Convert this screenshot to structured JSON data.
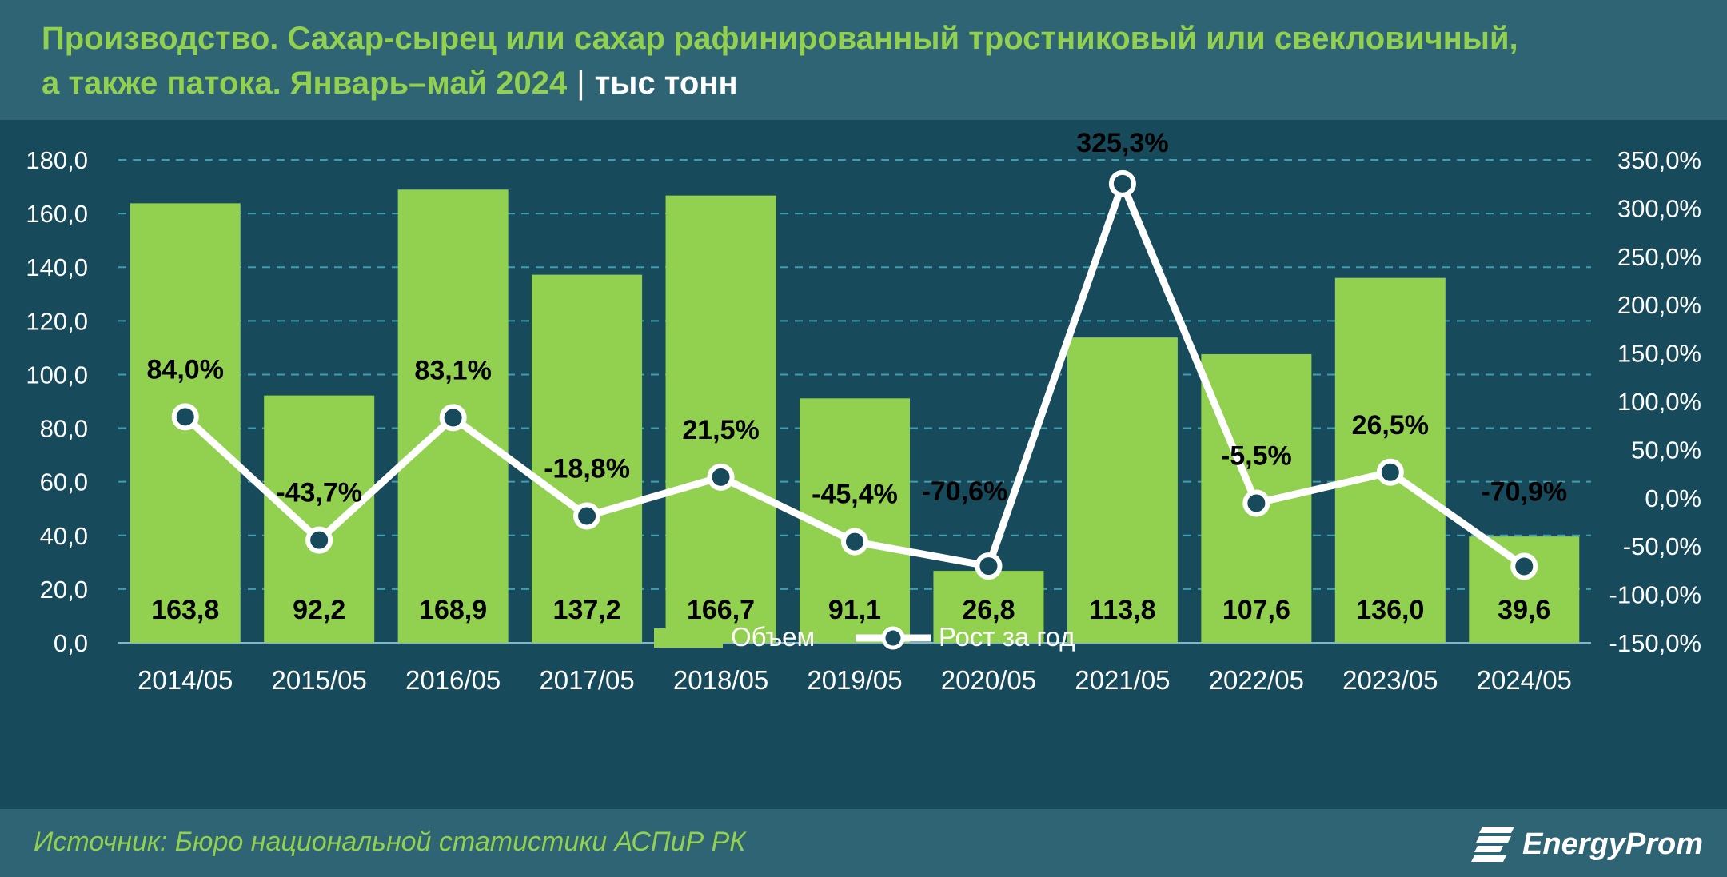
{
  "header": {
    "title_line1": "Производство. Сахар-сырец или сахар рафинированный тростниковый или свекловичный,",
    "title_line2": "а также патока. Январь–май 2024",
    "separator": "|",
    "unit": "тыс тонн"
  },
  "footer": {
    "source": "Источник: Бюро национальной статистики АСПиР РК",
    "logo_text": "EnergyProm"
  },
  "colors": {
    "bar": "#92d050",
    "line": "#ffffff",
    "gridline": "#3f9fb2",
    "text": "#ffffff",
    "label": "#000000",
    "background": "#174b5c",
    "header": "#2e6473"
  },
  "chart_data": {
    "type": "bar",
    "categories": [
      "2014/05",
      "2015/05",
      "2016/05",
      "2017/05",
      "2018/05",
      "2019/05",
      "2020/05",
      "2021/05",
      "2022/05",
      "2023/05",
      "2024/05"
    ],
    "series": [
      {
        "name": "Объем",
        "type": "bar",
        "axis": "left",
        "values": [
          163.8,
          92.2,
          168.9,
          137.2,
          166.7,
          91.1,
          26.8,
          113.8,
          107.6,
          136.0,
          39.6
        ],
        "labels": [
          "163,8",
          "92,2",
          "168,9",
          "137,2",
          "166,7",
          "91,1",
          "26,8",
          "113,8",
          "107,6",
          "136,0",
          "39,6"
        ]
      },
      {
        "name": "Рост за год",
        "type": "line",
        "axis": "right",
        "values": [
          84.0,
          -43.7,
          83.1,
          -18.8,
          21.5,
          -45.4,
          -70.6,
          325.3,
          -5.5,
          26.5,
          -70.9
        ],
        "labels": [
          "84,0%",
          "-43,7%",
          "83,1%",
          "-18,8%",
          "21,5%",
          "-45,4%",
          "-70,6%",
          "325,3%",
          "-5,5%",
          "26,5%",
          "-70,9%"
        ]
      }
    ],
    "y_left": {
      "range": [
        0,
        180
      ],
      "ticks": [
        "0,0",
        "20,0",
        "40,0",
        "60,0",
        "80,0",
        "100,0",
        "120,0",
        "140,0",
        "160,0",
        "180,0"
      ]
    },
    "y_right": {
      "range": [
        -150,
        350
      ],
      "ticks": [
        "-150,0%",
        "-100,0%",
        "-50,0%",
        "0,0%",
        "50,0%",
        "100,0%",
        "150,0%",
        "200,0%",
        "250,0%",
        "300,0%",
        "350,0%"
      ]
    },
    "grid": true,
    "legend": "bottom"
  }
}
